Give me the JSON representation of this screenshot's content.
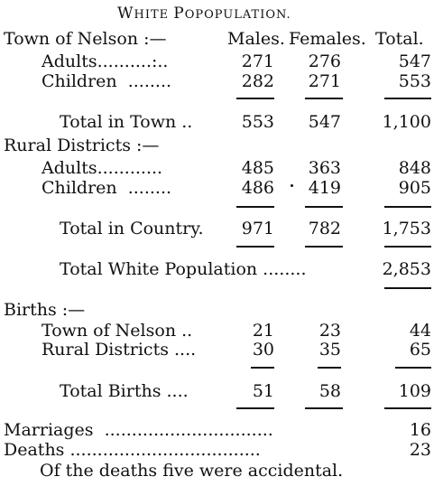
{
  "title": {
    "first_letter": "W",
    "rest_1": "HITE ",
    "rest_2_letter": "P",
    "rest_2": "OPOPULATION."
  },
  "columns": {
    "males": "Males.",
    "females": "Females.",
    "total": "Total."
  },
  "town": {
    "heading": "Town of Nelson :—",
    "adults": {
      "label": "Adults..........:..",
      "males": "271",
      "females": "276",
      "total": "547"
    },
    "children": {
      "label": "Children  ........",
      "males": "282",
      "females": "271",
      "total": "553"
    },
    "total": {
      "label": "Total in Town ..",
      "males": "553",
      "females": "547",
      "total": "1,100"
    }
  },
  "rural": {
    "heading": "Rural Districts :—",
    "adults": {
      "label": "Adults............",
      "males": "485",
      "females": "363",
      "total": "848"
    },
    "children": {
      "label": "Children  ........",
      "males": "486",
      "females": "419",
      "total": "905"
    },
    "total": {
      "label": "Total in Country.",
      "males": "971",
      "females": "782",
      "total": "1,753"
    }
  },
  "white_total": {
    "label": "Total White Population ........",
    "total": "2,853"
  },
  "births": {
    "heading": "Births :—",
    "town": {
      "label": "Town of Nelson ..",
      "males": "21",
      "females": "23",
      "total": "44"
    },
    "rural": {
      "label": "Rural Districts ....",
      "males": "30",
      "females": "35",
      "total": "65"
    },
    "total": {
      "label": "Total Births ....",
      "males": "51",
      "females": "58",
      "total": "109"
    }
  },
  "marriages": {
    "label": "Marriages  ...............................",
    "value": "16"
  },
  "deaths": {
    "label": "Deaths ...................................",
    "value": "23"
  },
  "note": "Of the deaths five were accidental."
}
